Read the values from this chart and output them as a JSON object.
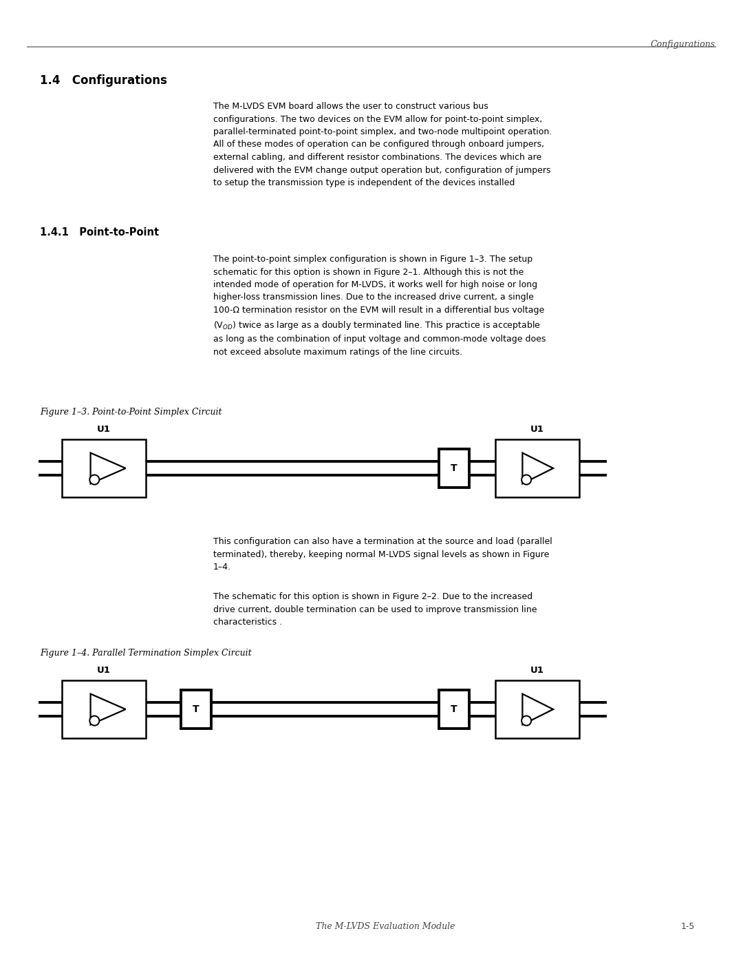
{
  "bg_color": "#ffffff",
  "page_width": 10.8,
  "page_height": 13.97,
  "header_text": "Configurations",
  "section_title": "1.4   Configurations",
  "subsection_title": "1.4.1   Point-to-Point",
  "body_text_1": "The M-LVDS EVM board allows the user to construct various bus\nconfigurations. The two devices on the EVM allow for point-to-point simplex,\nparallel-terminated point-to-point simplex, and two-node multipoint operation.\nAll of these modes of operation can be configured through onboard jumpers,\nexternal cabling, and different resistor combinations. The devices which are\ndelivered with the EVM change output operation but, configuration of jumpers\nto setup the transmission type is independent of the devices installed",
  "body_text_2": "The point-to-point simplex configuration is shown in Figure 1–3. The setup\nschematic for this option is shown in Figure 2–1. Although this is not the\nintended mode of operation for M-LVDS, it works well for high noise or long\nhigher-loss transmission lines. Due to the increased drive current, a single\n100-Ω termination resistor on the EVM will result in a differential bus voltage\n(V$_{OD}$) twice as large as a doubly terminated line. This practice is acceptable\nas long as the combination of input voltage and common-mode voltage does\nnot exceed absolute maximum ratings of the line circuits.",
  "fig1_caption": "Figure 1–3. Point-to-Point Simplex Circuit",
  "body_text_3": "This configuration can also have a termination at the source and load (parallel\nterminated), thereby, keeping normal M-LVDS signal levels as shown in Figure\n1–4.",
  "body_text_4": "The schematic for this option is shown in Figure 2–2. Due to the increased\ndrive current, double termination can be used to improve transmission line\ncharacteristics .",
  "fig2_caption": "Figure 1–4. Parallel Termination Simplex Circuit",
  "footer_left": "The M-LVDS Evaluation Module",
  "footer_right": "1-5"
}
